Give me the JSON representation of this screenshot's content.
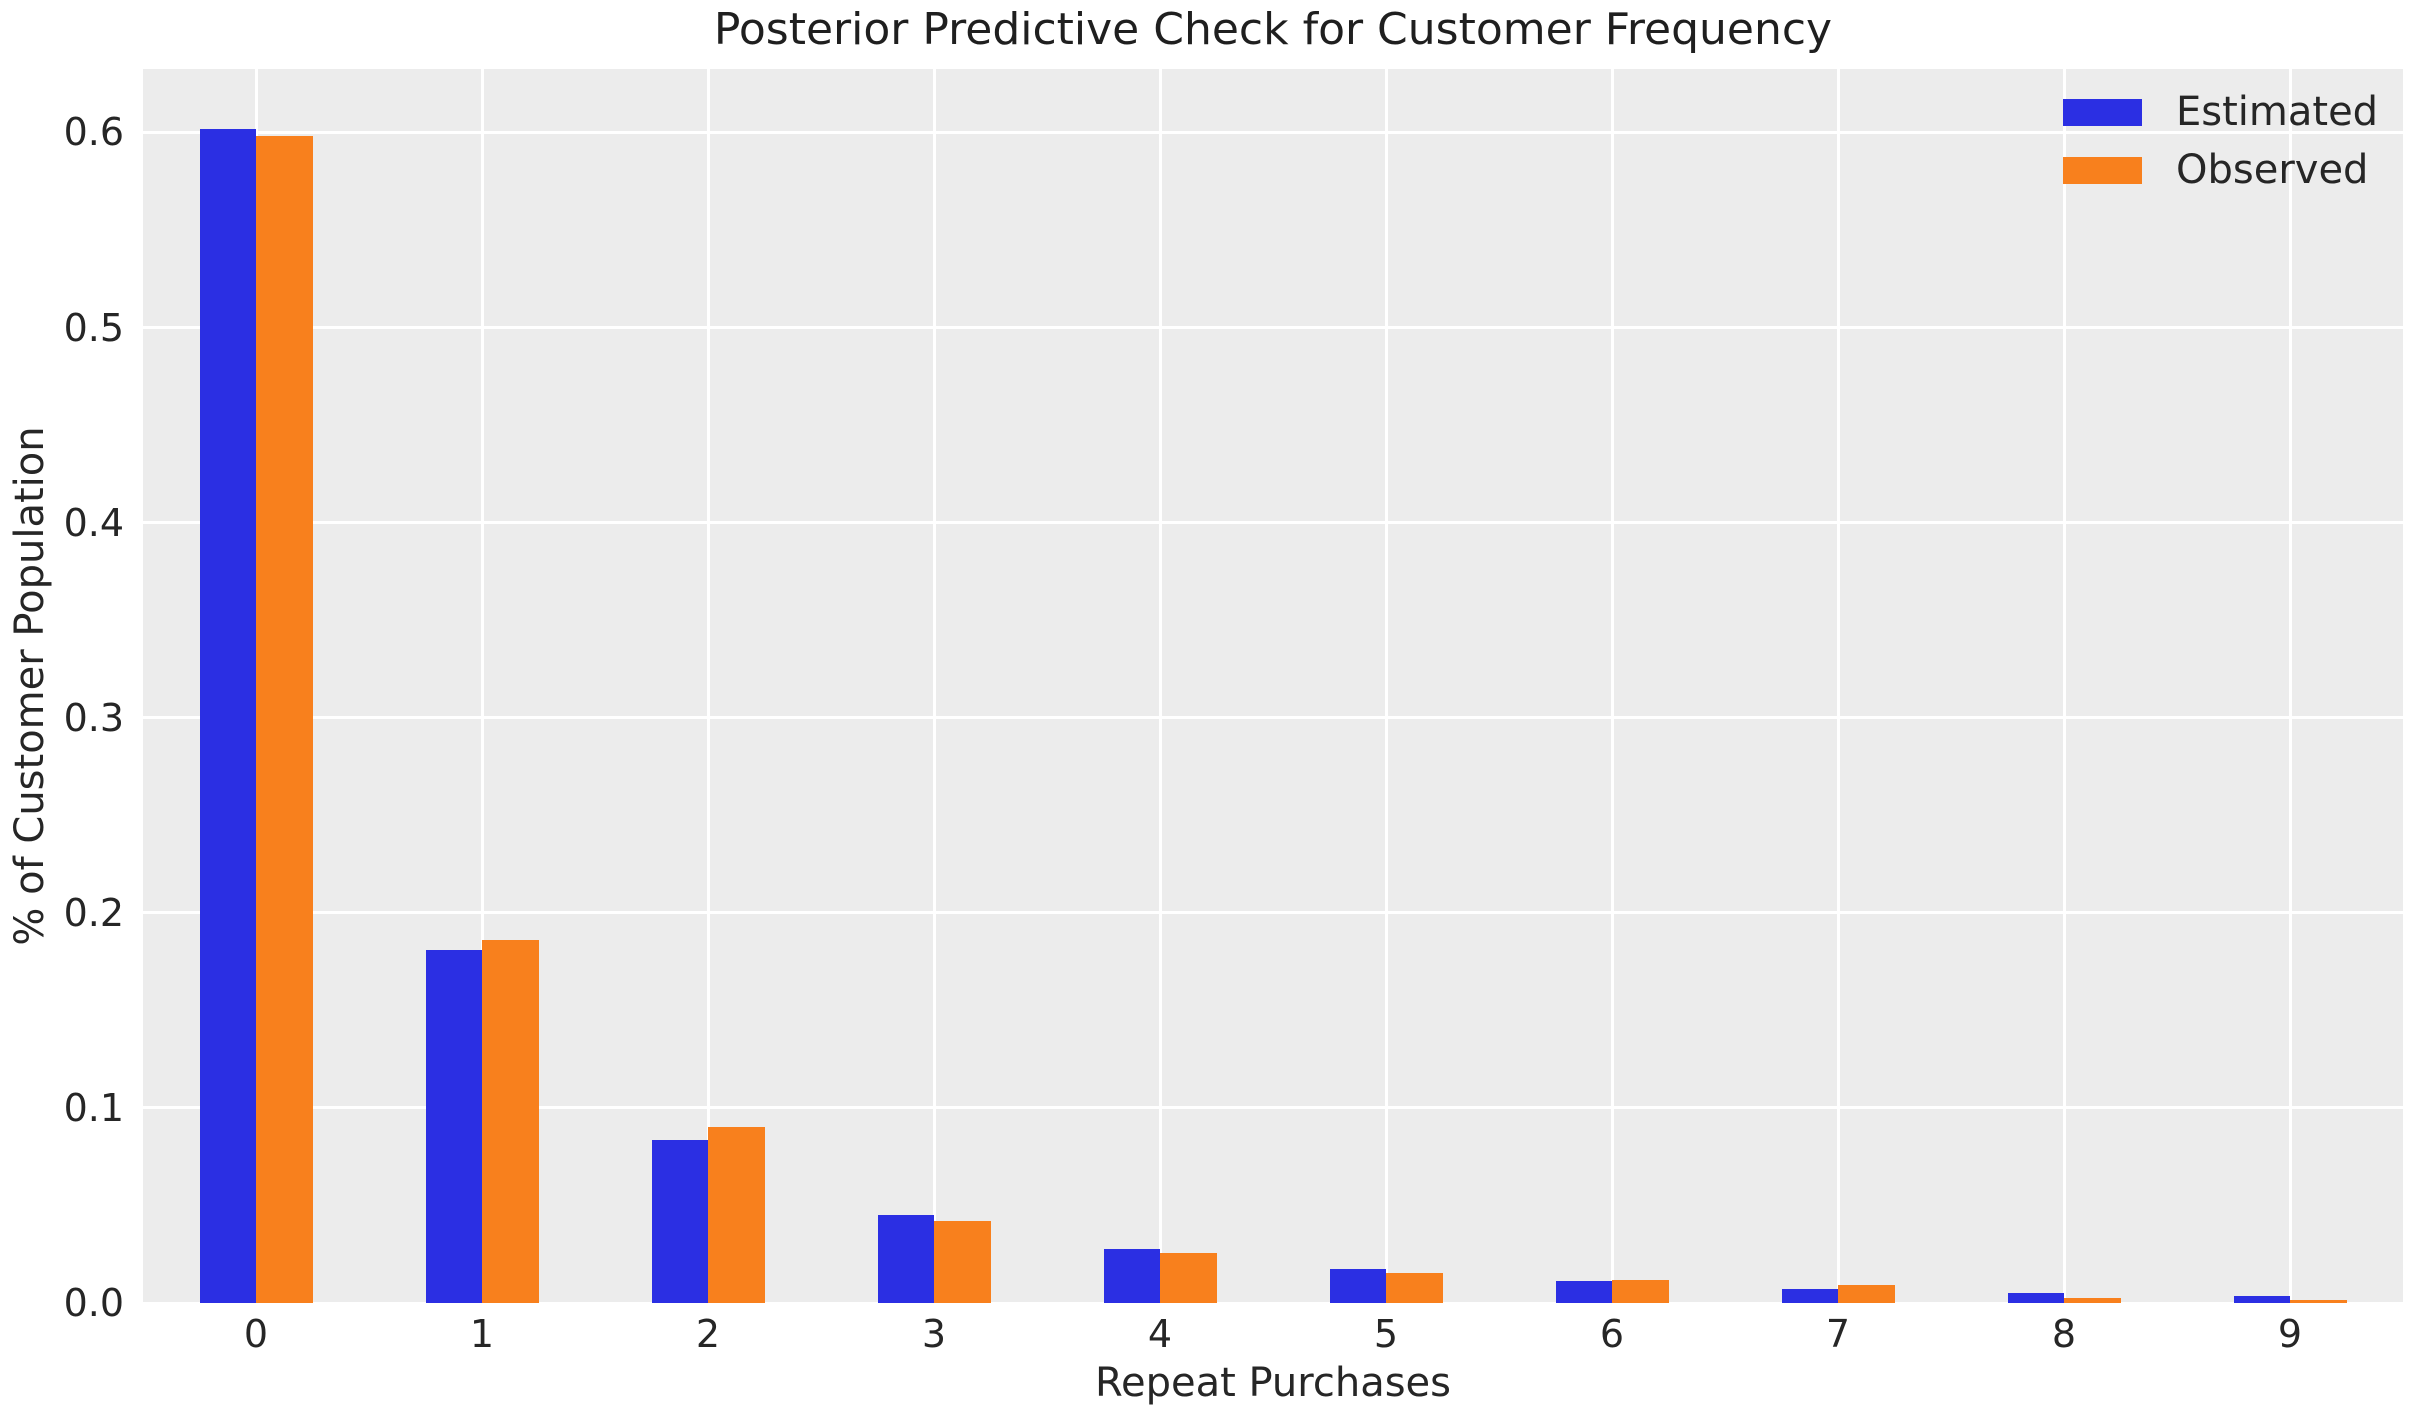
{
  "chart_data": {
    "type": "bar",
    "title": "Posterior Predictive Check for Customer Frequency",
    "xlabel": "Repeat Purchases",
    "ylabel": "% of Customer Population",
    "categories": [
      "0",
      "1",
      "2",
      "3",
      "4",
      "5",
      "6",
      "7",
      "8",
      "9"
    ],
    "series": [
      {
        "name": "Estimated",
        "color": "#2b2fe3",
        "values": [
          0.602,
          0.181,
          0.0835,
          0.045,
          0.0275,
          0.0172,
          0.0114,
          0.0072,
          0.0053,
          0.0036
        ]
      },
      {
        "name": "Observed",
        "color": "#f8801d",
        "values": [
          0.598,
          0.186,
          0.0903,
          0.042,
          0.0258,
          0.0155,
          0.0118,
          0.0092,
          0.0026,
          0.0015
        ]
      }
    ],
    "yticks": [
      0.0,
      0.1,
      0.2,
      0.3,
      0.4,
      0.5,
      0.6
    ],
    "ytick_labels": [
      "0.0",
      "0.1",
      "0.2",
      "0.3",
      "0.4",
      "0.5",
      "0.6"
    ],
    "ylim": [
      0,
      0.6325
    ],
    "xlim": [
      -0.5,
      9.5
    ],
    "bar_width": 0.25,
    "grid": true,
    "legend_position": "upper right",
    "colors": {
      "plot_background": "#ececec",
      "figure_background": "#ffffff",
      "gridline": "#ffffff",
      "text": "#262626"
    }
  }
}
